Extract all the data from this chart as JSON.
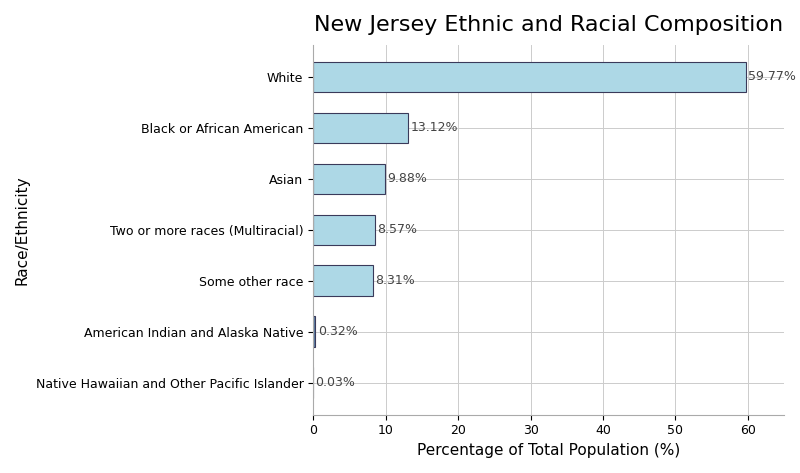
{
  "title": "New Jersey Ethnic and Racial Composition",
  "xlabel": "Percentage of Total Population (%)",
  "ylabel": "Race/Ethnicity",
  "categories": [
    "White",
    "Black or African American",
    "Asian",
    "Two or more races (Multiracial)",
    "Some other race",
    "American Indian and Alaska Native",
    "Native Hawaiian and Other Pacific Islander"
  ],
  "values": [
    59.77,
    13.12,
    9.88,
    8.57,
    8.31,
    0.32,
    0.03
  ],
  "labels": [
    "59.77%",
    "13.12%",
    "9.88%",
    "8.57%",
    "8.31%",
    "0.32%",
    "0.03%"
  ],
  "bar_colors": [
    "#ADD8E6",
    "#ADD8E6",
    "#ADD8E6",
    "#ADD8E6",
    "#ADD8E6",
    "#5b7fa6",
    "#ADD8E6"
  ],
  "bar_edge_color": "#3a3a5a",
  "bar_edge_width": 0.8,
  "background_color": "#ffffff",
  "grid_color": "#cccccc",
  "title_fontsize": 16,
  "axis_label_fontsize": 11,
  "tick_label_fontsize": 9,
  "value_label_fontsize": 9,
  "xlim": [
    0,
    65
  ]
}
